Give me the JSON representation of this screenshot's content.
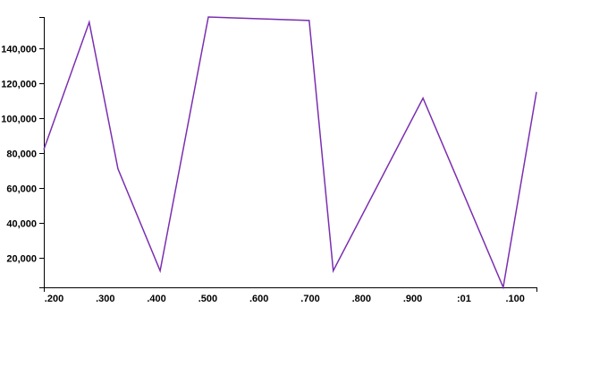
{
  "chart_data": {
    "type": "line",
    "title": "",
    "xlabel": "",
    "ylabel": "",
    "x_tick_labels": [
      ".200",
      ".300",
      ".400",
      ".500",
      ".600",
      ".700",
      ".800",
      ".900",
      ":01",
      ".100"
    ],
    "y_ticks": [
      20000,
      40000,
      60000,
      80000,
      100000,
      120000,
      140000
    ],
    "y_tick_labels": [
      "20,000",
      "40,000",
      "60,000",
      "80,000",
      "100,000",
      "120,000",
      "140,000"
    ],
    "ylim": [
      3000,
      158000
    ],
    "xlim": [
      0.1725,
      1.13
    ],
    "grid": false,
    "legend": "none",
    "series": [
      {
        "color": "#7b2fb0",
        "x": [
          0.1725,
          0.2608,
          0.3165,
          0.3986,
          0.4922,
          0.6883,
          0.735,
          0.9095,
          1.0653,
          1.13
        ],
        "y": [
          82000,
          155000,
          71000,
          12500,
          158000,
          156000,
          12500,
          111500,
          3000,
          115000
        ]
      }
    ]
  }
}
